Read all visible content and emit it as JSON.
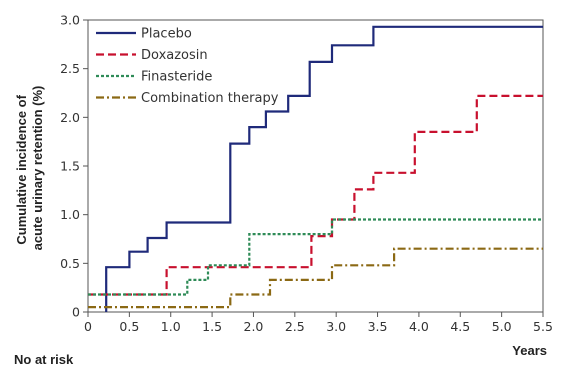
{
  "chart_data": {
    "type": "line",
    "step": true,
    "xlabel": "Years",
    "ylabel": "Cumulative incidence of acute urinary retention (%)",
    "ylabel_lines": [
      "Cumulative incidence of",
      "acute urinary retention (%)"
    ],
    "xlim": [
      0,
      5.5
    ],
    "ylim": [
      0,
      3.0
    ],
    "xticks": [
      0,
      0.5,
      1.0,
      1.5,
      2.0,
      2.5,
      3.0,
      3.5,
      4.0,
      4.5,
      5.0,
      5.5
    ],
    "xtick_labels": [
      "0",
      "0.5",
      "1.0",
      "1.5",
      "2.0",
      "2.5",
      "3.0",
      "3.5",
      "4.0",
      "4.5",
      "5.0",
      "5.5"
    ],
    "yticks": [
      0,
      0.5,
      1.0,
      1.5,
      2.0,
      2.5,
      3.0
    ],
    "ytick_labels": [
      "0",
      "0.5",
      "1.0",
      "1.5",
      "2.0",
      "2.5",
      "3.0"
    ],
    "grid": false,
    "legend_position": "top-left",
    "series": [
      {
        "name": "Placebo",
        "color": "#1f2a7a",
        "dash": "solid",
        "x": [
          0.22,
          0.22,
          0.5,
          0.72,
          0.95,
          1.72,
          1.95,
          2.15,
          2.42,
          2.68,
          2.95,
          3.45,
          5.5
        ],
        "y": [
          0,
          0.46,
          0.62,
          0.76,
          0.92,
          1.73,
          1.9,
          2.06,
          2.22,
          2.57,
          2.74,
          2.93,
          2.93
        ]
      },
      {
        "name": "Doxazosin",
        "color": "#c8102e",
        "dash": "dashed",
        "x": [
          0,
          0.95,
          1.72,
          2.7,
          2.95,
          3.22,
          3.45,
          3.95,
          4.7,
          5.5
        ],
        "y": [
          0.18,
          0.46,
          0.46,
          0.78,
          0.95,
          1.26,
          1.43,
          1.85,
          2.22,
          2.22
        ]
      },
      {
        "name": "Finasteride",
        "color": "#2e8b57",
        "dash": "dotted",
        "x": [
          0,
          1.2,
          1.45,
          1.95,
          2.95,
          5.5
        ],
        "y": [
          0.18,
          0.33,
          0.48,
          0.8,
          0.95,
          0.95
        ]
      },
      {
        "name": "Combination therapy",
        "color": "#8b6914",
        "dash": "dashdot",
        "x": [
          0,
          1.72,
          2.2,
          2.95,
          3.7,
          5.5
        ],
        "y": [
          0.05,
          0.18,
          0.33,
          0.48,
          0.65,
          0.65
        ]
      }
    ]
  },
  "footer": {
    "risk_label": "No at risk"
  }
}
